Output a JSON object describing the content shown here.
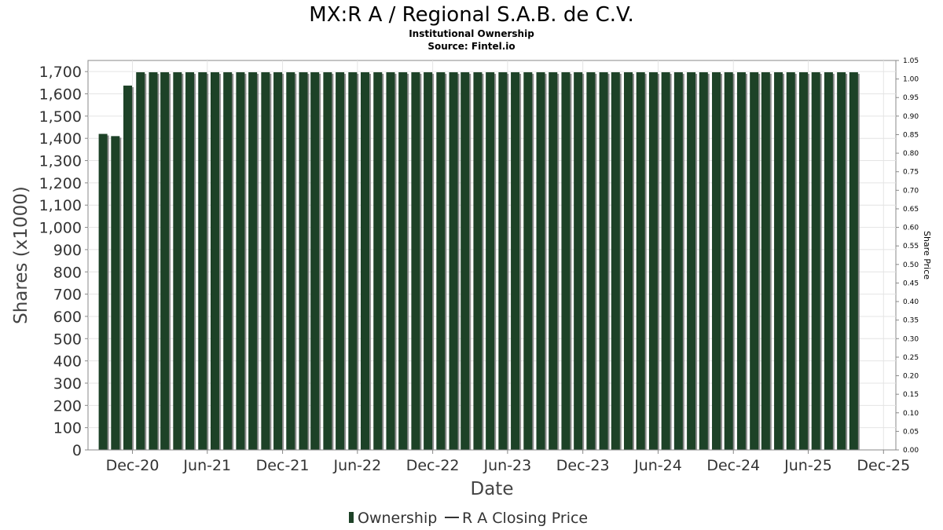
{
  "chart_data": {
    "type": "bar",
    "title": "MX:R A / Regional S.A.B. de C.V.",
    "subtitle_lines": [
      "Institutional Ownership",
      "Source: Fintel.io"
    ],
    "xlabel": "Date",
    "ylabel": "Shares (x1000)",
    "y2label": "Share Price",
    "ylim": [
      0,
      1750
    ],
    "y2lim": [
      0,
      1.05
    ],
    "xlim": [
      "2020-08-15",
      "2025-12-31"
    ],
    "yticks": [
      0,
      100,
      200,
      300,
      400,
      500,
      600,
      700,
      800,
      900,
      1000,
      1100,
      1200,
      1300,
      1400,
      1500,
      1600,
      1700
    ],
    "ytick_labels": [
      "0",
      "100",
      "200",
      "300",
      "400",
      "500",
      "600",
      "700",
      "800",
      "900",
      "1,000",
      "1,100",
      "1,200",
      "1,300",
      "1,400",
      "1,500",
      "1,600",
      "1,700"
    ],
    "y2ticks": [
      0,
      0.05,
      0.1,
      0.15,
      0.2,
      0.25,
      0.3,
      0.35,
      0.4,
      0.45,
      0.5,
      0.55,
      0.6,
      0.65,
      0.7,
      0.75,
      0.8,
      0.85,
      0.9,
      0.95,
      1.0,
      1.05
    ],
    "y2tick_labels": [
      "0.00",
      "0.05",
      "0.10",
      "0.15",
      "0.20",
      "0.25",
      "0.30",
      "0.35",
      "0.40",
      "0.45",
      "0.50",
      "0.55",
      "0.60",
      "0.65",
      "0.70",
      "0.75",
      "0.80",
      "0.85",
      "0.90",
      "0.95",
      "1.00",
      "1.05"
    ],
    "xticks": [
      "2020-12-01",
      "2021-06-01",
      "2021-12-01",
      "2022-06-01",
      "2022-12-01",
      "2023-06-01",
      "2023-12-01",
      "2024-06-01",
      "2024-12-01",
      "2025-06-01",
      "2025-12-01"
    ],
    "xtick_labels": [
      "Dec-20",
      "Jun-21",
      "Dec-21",
      "Jun-22",
      "Dec-22",
      "Jun-23",
      "Dec-23",
      "Jun-24",
      "Dec-24",
      "Jun-25",
      "Dec-25"
    ],
    "grid": true,
    "legend_position": "bottom-center",
    "series": [
      {
        "name": "Ownership",
        "color": "#1d4227",
        "x": [
          "2020-10-01",
          "2020-10-31",
          "2020-11-30",
          "2020-12-31",
          "2021-01-31",
          "2021-02-28",
          "2021-03-31",
          "2021-04-30",
          "2021-05-31",
          "2021-06-30",
          "2021-07-31",
          "2021-08-31",
          "2021-09-30",
          "2021-10-31",
          "2021-11-30",
          "2021-12-31",
          "2022-01-31",
          "2022-02-28",
          "2022-03-31",
          "2022-04-30",
          "2022-05-31",
          "2022-06-30",
          "2022-07-31",
          "2022-08-31",
          "2022-09-30",
          "2022-10-31",
          "2022-11-30",
          "2022-12-31",
          "2023-01-31",
          "2023-02-28",
          "2023-03-31",
          "2023-04-30",
          "2023-05-31",
          "2023-06-30",
          "2023-07-31",
          "2023-08-31",
          "2023-09-30",
          "2023-10-31",
          "2023-11-30",
          "2023-12-31",
          "2024-01-31",
          "2024-02-29",
          "2024-03-31",
          "2024-04-30",
          "2024-05-31",
          "2024-06-30",
          "2024-07-31",
          "2024-08-31",
          "2024-09-30",
          "2024-10-31",
          "2024-11-30",
          "2024-12-31",
          "2025-01-31",
          "2025-02-28",
          "2025-03-31",
          "2025-04-30",
          "2025-05-31",
          "2025-06-30",
          "2025-07-31",
          "2025-08-31",
          "2025-09-30"
        ],
        "values": [
          1420,
          1410,
          1637,
          1697,
          1697,
          1697,
          1697,
          1697,
          1697,
          1697,
          1697,
          1697,
          1697,
          1697,
          1697,
          1697,
          1697,
          1697,
          1697,
          1697,
          1697,
          1697,
          1697,
          1697,
          1697,
          1697,
          1697,
          1697,
          1697,
          1697,
          1697,
          1697,
          1697,
          1697,
          1697,
          1697,
          1697,
          1697,
          1697,
          1697,
          1697,
          1697,
          1697,
          1697,
          1697,
          1697,
          1697,
          1697,
          1697,
          1697,
          1697,
          1697,
          1697,
          1697,
          1697,
          1697,
          1697,
          1697,
          1697,
          1697,
          1697
        ]
      },
      {
        "name": "R A Closing Price",
        "color": "#333333",
        "x": [],
        "values": []
      }
    ]
  }
}
